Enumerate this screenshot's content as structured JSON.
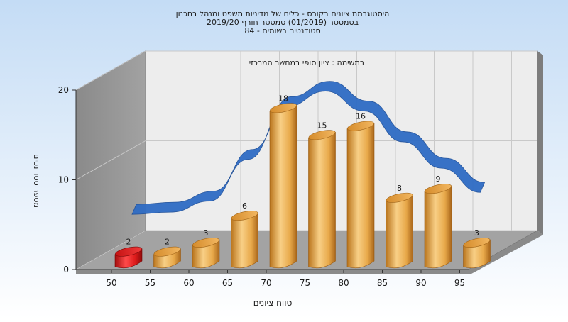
{
  "chart_data": {
    "type": "bar",
    "title_lines": [
      "היסטוגרמת ציונים בקורס - כלים של מדיניות משפט ומנהל בחכנון",
      "בסמסטר  (01/2019)  סמסטר חורף 2019/20",
      "סטודנטים רשומים - 84"
    ],
    "subtitle": "במשימה : ציון סופי במחשב המרכזי",
    "xlabel": "טווח ציונים",
    "ylabel": "מספר סטודנטים",
    "ylim": [
      0,
      20
    ],
    "y_ticks": [
      "0",
      "10",
      "20"
    ],
    "x_ticks": [
      "50",
      "55",
      "60",
      "65",
      "70",
      "75",
      "80",
      "85",
      "90",
      "95"
    ],
    "values": [
      2,
      2,
      3,
      6,
      18,
      15,
      16,
      8,
      9,
      3
    ],
    "data_labels": [
      "2",
      "2",
      "3",
      "6",
      "18",
      "15",
      "16",
      "8",
      "9",
      "3"
    ],
    "highlight_index": 0,
    "colors": {
      "bar": "#e8a94a",
      "bar_highlight": "#dd1a1a",
      "curve": "#2f6cc4",
      "background_top": "#c4dcf5",
      "background_bottom": "#ffffff",
      "left_wall": "#8f8f8f",
      "back_wall": "#ededed",
      "floor": "#a3a3a3"
    },
    "grid": true,
    "legend": "none"
  }
}
